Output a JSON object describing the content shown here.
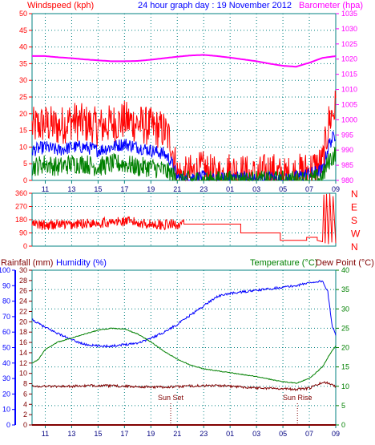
{
  "header": {
    "title": "24 hour graph day : 19 November 2012",
    "left_label": "Windspeed (kph)",
    "right_label": "Barometer (hpa)"
  },
  "panel2": {
    "direction_letters": [
      "N",
      "W",
      "S",
      "E",
      "N"
    ]
  },
  "panel3": {
    "rainfall_label": "Rainfall (mm)",
    "humidity_label": "Humidity (%)",
    "temperature_label": "Temperature (°C)",
    "dewpoint_label": "Dew Point (°C)",
    "sunset_label": "Sun Set",
    "sunrise_label": "Sun Rise"
  },
  "colors": {
    "windspeed": "#ff0000",
    "wind_avg": "#0000ff",
    "wind_min": "#008000",
    "barometer": "#ff00ff",
    "humidity": "#0000ff",
    "temperature": "#008000",
    "dewpoint": "#800000",
    "rainfall": "#800000",
    "frame": "#008080",
    "grid": "#008080"
  },
  "chart_data": [
    {
      "type": "line",
      "title": "24 hour graph day : 19 November 2012",
      "x_ticks": [
        "11",
        "13",
        "15",
        "17",
        "19",
        "21",
        "23",
        "01",
        "03",
        "05",
        "07",
        "09"
      ],
      "y_left_label": "Windspeed (kph)",
      "y_left_ticks": [
        0,
        5,
        10,
        15,
        20,
        25,
        30,
        35,
        40,
        45,
        50
      ],
      "y_left_range": [
        0,
        50
      ],
      "y_right_label": "Barometer (hpa)",
      "y_right_ticks": [
        980,
        985,
        990,
        995,
        1000,
        1005,
        1010,
        1015,
        1020,
        1025,
        1030,
        1035
      ],
      "y_right_range": [
        980,
        1035
      ],
      "series": [
        {
          "role": "barometer",
          "axis": "right",
          "x_hours": [
            10,
            11,
            12,
            13,
            14,
            15,
            16,
            17,
            18,
            19,
            20,
            21,
            22,
            23,
            24,
            25,
            26,
            27,
            28,
            29,
            30,
            31,
            32,
            33
          ],
          "values": [
            1021,
            1021,
            1020.6,
            1020.3,
            1019.9,
            1019.6,
            1019.3,
            1019.3,
            1019.4,
            1019.8,
            1020.3,
            1020.8,
            1021.2,
            1021.4,
            1021.0,
            1020.5,
            1019.9,
            1019.3,
            1018.5,
            1017.8,
            1017.5,
            1018.8,
            1020.4,
            1021
          ]
        },
        {
          "role": "windspeed",
          "axis": "left",
          "x_hours": [
            10,
            11,
            12,
            13,
            14,
            15,
            16,
            17,
            18,
            19,
            20,
            20.5,
            21,
            21.5,
            22,
            23,
            24,
            25,
            26,
            27,
            28,
            29,
            30,
            31,
            32,
            32.5,
            33
          ],
          "values": [
            16,
            17,
            16,
            18,
            17,
            16,
            17,
            18,
            17,
            16,
            15,
            12,
            2,
            1,
            2,
            3,
            1,
            3,
            2,
            1,
            3,
            1,
            2,
            3,
            5,
            18,
            22
          ]
        },
        {
          "role": "windspeed-avg",
          "axis": "left",
          "x_hours": [
            10,
            11,
            12,
            13,
            14,
            15,
            16,
            17,
            18,
            19,
            20,
            20.5,
            21,
            21.5,
            22,
            23,
            24,
            25,
            26,
            27,
            28,
            29,
            30,
            31,
            32,
            32.5,
            33
          ],
          "values": [
            9,
            10,
            9,
            10,
            10,
            9,
            10,
            11,
            10,
            9,
            8,
            6,
            1,
            0,
            1,
            1,
            0,
            1,
            1,
            0,
            1,
            0,
            1,
            2,
            3,
            11,
            14
          ]
        },
        {
          "role": "windspeed-min",
          "axis": "left",
          "x_hours": [
            10,
            11,
            12,
            13,
            14,
            15,
            16,
            17,
            18,
            19,
            20,
            20.5,
            21,
            21.5,
            22,
            23,
            24,
            25,
            26,
            27,
            28,
            29,
            30,
            31,
            32,
            32.5,
            33
          ],
          "values": [
            4,
            5,
            4,
            5,
            5,
            4,
            5,
            5,
            4,
            4,
            3,
            2,
            0,
            0,
            0,
            0,
            0,
            0,
            0,
            0,
            0,
            0,
            0,
            0,
            1,
            6,
            8
          ]
        }
      ]
    },
    {
      "type": "line",
      "x_ticks": [
        "11",
        "13",
        "15",
        "17",
        "19",
        "21",
        "23",
        "01",
        "03",
        "05",
        "07",
        "09"
      ],
      "y_left_ticks": [
        0,
        90,
        180,
        270,
        360
      ],
      "y_left_range": [
        0,
        360
      ],
      "y_right_ticks": [
        "N",
        "W",
        "S",
        "E",
        "N"
      ],
      "series": [
        {
          "role": "wind-direction",
          "x_hours": [
            10,
            11,
            12,
            13,
            14,
            15,
            16,
            17,
            18,
            19,
            20,
            21,
            21.5,
            24,
            26,
            27,
            29,
            30,
            31,
            31.5,
            32,
            32.2,
            32.5,
            32.8,
            33
          ],
          "values": [
            150,
            140,
            150,
            145,
            155,
            160,
            160,
            170,
            160,
            150,
            145,
            150,
            150,
            150,
            90,
            90,
            40,
            40,
            60,
            40,
            20,
            340,
            30,
            350,
            20
          ]
        }
      ]
    },
    {
      "type": "line",
      "x_ticks": [
        "11",
        "13",
        "15",
        "17",
        "19",
        "21",
        "23",
        "01",
        "03",
        "05",
        "07",
        "09"
      ],
      "y_rain_ticks": [
        0,
        10,
        20,
        30,
        40,
        50,
        60,
        70,
        80,
        90,
        100
      ],
      "y_rain_range": [
        0,
        100
      ],
      "y_humidity_ticks": [
        0,
        2,
        4,
        6,
        8,
        10,
        12,
        14,
        16,
        18,
        20,
        22,
        24,
        26,
        28,
        30
      ],
      "y_humidity_range": [
        0,
        30
      ],
      "y_temp_ticks": [
        0,
        5,
        10,
        15,
        20,
        25,
        30,
        35,
        40
      ],
      "y_temp_range": [
        0,
        40
      ],
      "sun_set_hour": 20.5,
      "sun_rise_hour": 30.1,
      "series": [
        {
          "role": "humidity",
          "axis": "rain",
          "x_hours": [
            10,
            11,
            12,
            13,
            14,
            15,
            16,
            17,
            18,
            19,
            20,
            21,
            22,
            23,
            24,
            25,
            26,
            27,
            28,
            29,
            30,
            31,
            32,
            32.4,
            32.7,
            33
          ],
          "values": [
            68,
            63,
            59,
            55,
            52,
            51,
            51,
            52,
            53,
            56,
            60,
            65,
            71,
            77,
            83,
            85,
            86,
            87,
            88,
            89,
            90,
            92,
            93,
            86,
            65,
            58
          ]
        },
        {
          "role": "temperature",
          "axis": "temp",
          "x_hours": [
            10,
            10.5,
            11,
            12,
            13,
            14,
            15,
            16,
            17,
            18,
            19,
            20,
            21,
            22,
            23,
            24,
            25,
            26,
            27,
            28,
            29,
            30,
            31,
            32,
            32.5,
            33
          ],
          "values": [
            16,
            17,
            19.5,
            21.5,
            22.5,
            23.5,
            24.5,
            25,
            24.8,
            23.5,
            21.5,
            19,
            17,
            15.5,
            14.5,
            14,
            13.5,
            13,
            12.5,
            11.8,
            11.2,
            10.8,
            12,
            15,
            18,
            20.5
          ]
        },
        {
          "role": "dewpoint",
          "axis": "temp",
          "x_hours": [
            10,
            11,
            12,
            13,
            14,
            15,
            16,
            17,
            18,
            19,
            20,
            21,
            22,
            23,
            24,
            25,
            26,
            27,
            28,
            29,
            30,
            31,
            32,
            32.5,
            33
          ],
          "values": [
            10,
            10,
            10,
            10,
            10.1,
            10.2,
            10.1,
            10,
            9.9,
            9.8,
            9.8,
            9.9,
            10.1,
            10.1,
            10.2,
            10,
            9.8,
            9.6,
            9.5,
            9.4,
            9.2,
            9.5,
            11,
            10.8,
            10
          ]
        },
        {
          "role": "rainfall",
          "axis": "rain",
          "x_hours": [
            10,
            33
          ],
          "values": [
            0,
            0
          ]
        }
      ]
    }
  ]
}
